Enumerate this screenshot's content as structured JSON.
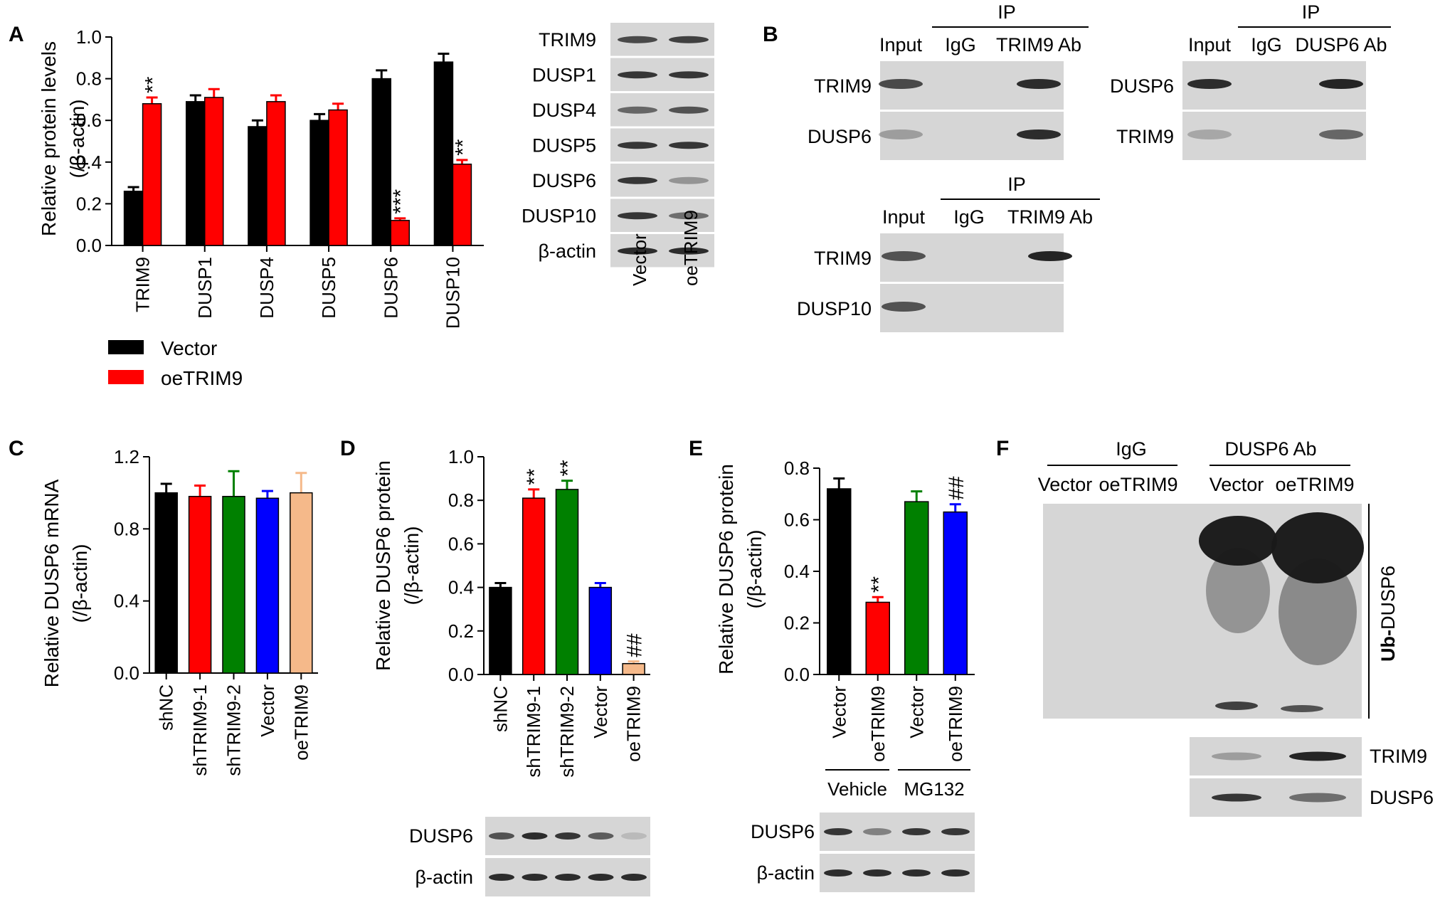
{
  "colors": {
    "vector": "#000000",
    "oetrim9": "#ff0000",
    "shNC": "#000000",
    "shTRIM9_1": "#ff0000",
    "shTRIM9_2": "#008000",
    "vector_blue": "#0000ff",
    "oetrim9_tan": "#f5b98a",
    "blot_bg": "#d6d6d6",
    "band": "#1a1a1a"
  },
  "panels": {
    "A": "A",
    "B": "B",
    "C": "C",
    "D": "D",
    "E": "E",
    "F": "F"
  },
  "chart_data": [
    {
      "id": "A",
      "type": "bar",
      "ylabel": "Relative protein levels",
      "ylabel2": "(/β-actin)",
      "ylim": [
        0,
        1.0
      ],
      "yticks": [
        "0.0",
        "0.2",
        "0.4",
        "0.6",
        "0.8",
        "1.0"
      ],
      "categories": [
        "TRIM9",
        "DUSP1",
        "DUSP4",
        "DUSP5",
        "DUSP6",
        "DUSP10"
      ],
      "series": [
        {
          "name": "Vector",
          "values": [
            0.26,
            0.69,
            0.57,
            0.6,
            0.8,
            0.88
          ],
          "err": [
            0.02,
            0.03,
            0.03,
            0.03,
            0.04,
            0.04
          ]
        },
        {
          "name": "oeTRIM9",
          "values": [
            0.68,
            0.71,
            0.69,
            0.65,
            0.12,
            0.39
          ],
          "err": [
            0.03,
            0.04,
            0.03,
            0.03,
            0.01,
            0.02
          ]
        }
      ],
      "annotations": [
        {
          "category": "TRIM9",
          "series": "oeTRIM9",
          "text": "**"
        },
        {
          "category": "DUSP6",
          "series": "oeTRIM9",
          "text": "***"
        },
        {
          "category": "DUSP10",
          "series": "oeTRIM9",
          "text": "**"
        }
      ],
      "legend": [
        "Vector",
        "oeTRIM9"
      ]
    },
    {
      "id": "C",
      "type": "bar",
      "ylabel": "Relative DUSP6 mRNA",
      "ylabel2": "(/β-actin)",
      "ylim": [
        0,
        1.2
      ],
      "yticks": [
        "0.0",
        "0.4",
        "0.8",
        "1.2"
      ],
      "categories": [
        "shNC",
        "shTRIM9-1",
        "shTRIM9-2",
        "Vector",
        "oeTRIM9"
      ],
      "values": [
        1.0,
        0.98,
        0.98,
        0.97,
        1.0
      ],
      "err": [
        0.05,
        0.06,
        0.14,
        0.04,
        0.11
      ]
    },
    {
      "id": "D",
      "type": "bar",
      "ylabel": "Relative DUSP6 protein",
      "ylabel2": "(/β-actin)",
      "ylim": [
        0,
        1.0
      ],
      "yticks": [
        "0.0",
        "0.2",
        "0.4",
        "0.6",
        "0.8",
        "1.0"
      ],
      "categories": [
        "shNC",
        "shTRIM9-1",
        "shTRIM9-2",
        "Vector",
        "oeTRIM9"
      ],
      "values": [
        0.4,
        0.81,
        0.85,
        0.4,
        0.05
      ],
      "err": [
        0.02,
        0.04,
        0.04,
        0.02,
        0.01
      ],
      "annotations": [
        "",
        "**",
        "**",
        "",
        "##"
      ]
    },
    {
      "id": "E",
      "type": "bar",
      "ylabel": "Relative DUSP6 protein",
      "ylabel2": "(/β-actin)",
      "ylim": [
        0,
        0.8
      ],
      "yticks": [
        "0.0",
        "0.2",
        "0.4",
        "0.6",
        "0.8"
      ],
      "categories": [
        "Vector",
        "oeTRIM9",
        "Vector",
        "oeTRIM9"
      ],
      "values": [
        0.72,
        0.28,
        0.67,
        0.63
      ],
      "err": [
        0.04,
        0.02,
        0.04,
        0.03
      ],
      "annotations": [
        "",
        "**",
        "",
        "##"
      ],
      "groups": [
        "Vehicle",
        "MG132"
      ]
    }
  ],
  "blots": {
    "A": {
      "rows": [
        "TRIM9",
        "DUSP1",
        "DUSP4",
        "DUSP5",
        "DUSP6",
        "DUSP10",
        "β-actin"
      ],
      "lanes": [
        "Vector",
        "oeTRIM9"
      ]
    },
    "B1": {
      "header": "IP",
      "lanes": [
        "Input",
        "IgG",
        "TRIM9 Ab"
      ],
      "rows": [
        "TRIM9",
        "DUSP6"
      ]
    },
    "B2": {
      "header": "IP",
      "lanes": [
        "Input",
        "IgG",
        "DUSP6 Ab"
      ],
      "rows": [
        "DUSP6",
        "TRIM9"
      ]
    },
    "B3": {
      "header": "IP",
      "lanes": [
        "Input",
        "IgG",
        "TRIM9 Ab"
      ],
      "rows": [
        "TRIM9",
        "DUSP10"
      ]
    },
    "D": {
      "rows": [
        "DUSP6",
        "β-actin"
      ]
    },
    "E": {
      "rows": [
        "DUSP6",
        "β-actin"
      ]
    },
    "F": {
      "groups": [
        "IgG",
        "DUSP6 Ab"
      ],
      "lanes": [
        "Vector",
        "oeTRIM9",
        "Vector",
        "oeTRIM9"
      ],
      "side_bold": "Ub-",
      "side_rest": "DUSP6",
      "rows": [
        "TRIM9",
        "DUSP6"
      ]
    }
  }
}
